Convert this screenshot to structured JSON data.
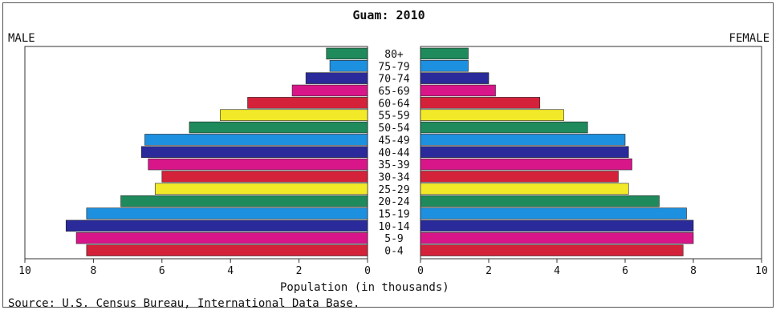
{
  "chart_data": {
    "type": "bar",
    "title": "Guam: 2010",
    "left_label": "MALE",
    "right_label": "FEMALE",
    "xlabel": "Population (in thousands)",
    "source": "Source: U.S. Census Bureau, International Data Base.",
    "xlim": [
      0,
      10
    ],
    "x_ticks": [
      10,
      8,
      6,
      4,
      2,
      0
    ],
    "x_ticks_right": [
      0,
      2,
      4,
      6,
      8,
      10
    ],
    "categories": [
      "80+",
      "75-79",
      "70-74",
      "65-69",
      "60-64",
      "55-59",
      "50-54",
      "45-49",
      "40-44",
      "35-39",
      "30-34",
      "25-29",
      "20-24",
      "15-19",
      "10-14",
      "5-9",
      "0-4"
    ],
    "series": [
      {
        "name": "MALE",
        "values": [
          1.2,
          1.1,
          1.8,
          2.2,
          3.5,
          4.3,
          5.2,
          6.5,
          6.6,
          6.4,
          6.0,
          6.2,
          7.2,
          8.2,
          8.8,
          8.5,
          8.2
        ]
      },
      {
        "name": "FEMALE",
        "values": [
          1.4,
          1.4,
          2.0,
          2.2,
          3.5,
          4.2,
          4.9,
          6.0,
          6.1,
          6.2,
          5.8,
          6.1,
          7.0,
          7.8,
          8.0,
          8.0,
          7.7
        ]
      }
    ],
    "colors": [
      "#1f8a5c",
      "#1e90e0",
      "#2a2a9a",
      "#d8168a",
      "#d4223a",
      "#f2ea28",
      "#1f8a5c",
      "#1e90e0",
      "#2a2a9a",
      "#d8168a",
      "#d4223a",
      "#f2ea28",
      "#1f8a5c",
      "#1e90e0",
      "#2a2a9a",
      "#d8168a",
      "#d4223a"
    ],
    "grid": false
  }
}
